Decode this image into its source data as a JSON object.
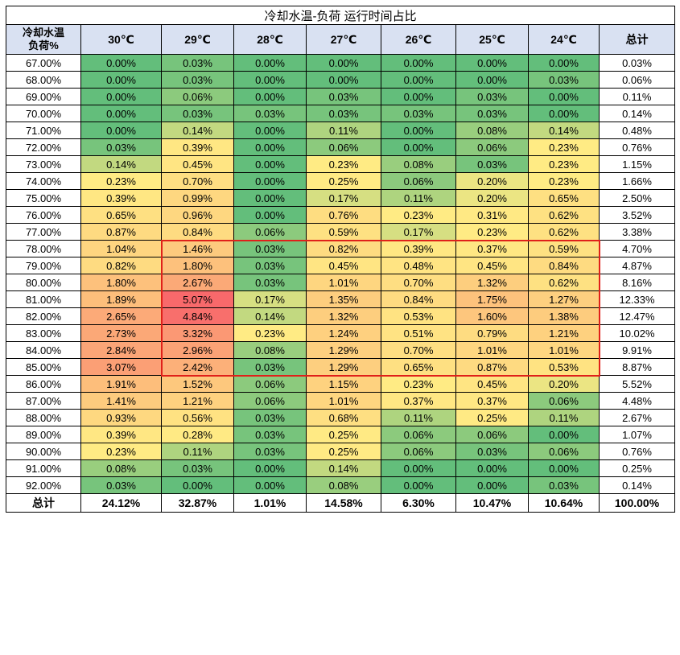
{
  "table": {
    "title": "冷却水温-负荷 运行时间占比",
    "corner_top": "冷却水温",
    "corner_bottom": "负荷%",
    "columns": [
      "30℃",
      "29℃",
      "28℃",
      "27℃",
      "26℃",
      "25℃",
      "24℃"
    ],
    "total_header": "总计",
    "rows": [
      {
        "load": "67.00%",
        "values": [
          "0.00%",
          "0.03%",
          "0.00%",
          "0.00%",
          "0.00%",
          "0.00%",
          "0.00%"
        ],
        "total": "0.03%"
      },
      {
        "load": "68.00%",
        "values": [
          "0.00%",
          "0.03%",
          "0.00%",
          "0.00%",
          "0.00%",
          "0.00%",
          "0.03%"
        ],
        "total": "0.06%"
      },
      {
        "load": "69.00%",
        "values": [
          "0.00%",
          "0.06%",
          "0.00%",
          "0.03%",
          "0.00%",
          "0.03%",
          "0.00%"
        ],
        "total": "0.11%"
      },
      {
        "load": "70.00%",
        "values": [
          "0.00%",
          "0.03%",
          "0.03%",
          "0.03%",
          "0.03%",
          "0.03%",
          "0.00%"
        ],
        "total": "0.14%"
      },
      {
        "load": "71.00%",
        "values": [
          "0.00%",
          "0.14%",
          "0.00%",
          "0.11%",
          "0.00%",
          "0.08%",
          "0.14%"
        ],
        "total": "0.48%"
      },
      {
        "load": "72.00%",
        "values": [
          "0.03%",
          "0.39%",
          "0.00%",
          "0.06%",
          "0.00%",
          "0.06%",
          "0.23%"
        ],
        "total": "0.76%"
      },
      {
        "load": "73.00%",
        "values": [
          "0.14%",
          "0.45%",
          "0.00%",
          "0.23%",
          "0.08%",
          "0.03%",
          "0.23%"
        ],
        "total": "1.15%"
      },
      {
        "load": "74.00%",
        "values": [
          "0.23%",
          "0.70%",
          "0.00%",
          "0.25%",
          "0.06%",
          "0.20%",
          "0.23%"
        ],
        "total": "1.66%"
      },
      {
        "load": "75.00%",
        "values": [
          "0.39%",
          "0.99%",
          "0.00%",
          "0.17%",
          "0.11%",
          "0.20%",
          "0.65%"
        ],
        "total": "2.50%"
      },
      {
        "load": "76.00%",
        "values": [
          "0.65%",
          "0.96%",
          "0.00%",
          "0.76%",
          "0.23%",
          "0.31%",
          "0.62%"
        ],
        "total": "3.52%"
      },
      {
        "load": "77.00%",
        "values": [
          "0.87%",
          "0.84%",
          "0.06%",
          "0.59%",
          "0.17%",
          "0.23%",
          "0.62%"
        ],
        "total": "3.38%"
      },
      {
        "load": "78.00%",
        "values": [
          "1.04%",
          "1.46%",
          "0.03%",
          "0.82%",
          "0.39%",
          "0.37%",
          "0.59%"
        ],
        "total": "4.70%"
      },
      {
        "load": "79.00%",
        "values": [
          "0.82%",
          "1.80%",
          "0.03%",
          "0.45%",
          "0.48%",
          "0.45%",
          "0.84%"
        ],
        "total": "4.87%"
      },
      {
        "load": "80.00%",
        "values": [
          "1.80%",
          "2.67%",
          "0.03%",
          "1.01%",
          "0.70%",
          "1.32%",
          "0.62%"
        ],
        "total": "8.16%"
      },
      {
        "load": "81.00%",
        "values": [
          "1.89%",
          "5.07%",
          "0.17%",
          "1.35%",
          "0.84%",
          "1.75%",
          "1.27%"
        ],
        "total": "12.33%"
      },
      {
        "load": "82.00%",
        "values": [
          "2.65%",
          "4.84%",
          "0.14%",
          "1.32%",
          "0.53%",
          "1.60%",
          "1.38%"
        ],
        "total": "12.47%"
      },
      {
        "load": "83.00%",
        "values": [
          "2.73%",
          "3.32%",
          "0.23%",
          "1.24%",
          "0.51%",
          "0.79%",
          "1.21%"
        ],
        "total": "10.02%"
      },
      {
        "load": "84.00%",
        "values": [
          "2.84%",
          "2.96%",
          "0.08%",
          "1.29%",
          "0.70%",
          "1.01%",
          "1.01%"
        ],
        "total": "9.91%"
      },
      {
        "load": "85.00%",
        "values": [
          "3.07%",
          "2.42%",
          "0.03%",
          "1.29%",
          "0.65%",
          "0.87%",
          "0.53%"
        ],
        "total": "8.87%"
      },
      {
        "load": "86.00%",
        "values": [
          "1.91%",
          "1.52%",
          "0.06%",
          "1.15%",
          "0.23%",
          "0.45%",
          "0.20%"
        ],
        "total": "5.52%"
      },
      {
        "load": "87.00%",
        "values": [
          "1.41%",
          "1.21%",
          "0.06%",
          "1.01%",
          "0.37%",
          "0.37%",
          "0.06%"
        ],
        "total": "4.48%"
      },
      {
        "load": "88.00%",
        "values": [
          "0.93%",
          "0.56%",
          "0.03%",
          "0.68%",
          "0.11%",
          "0.25%",
          "0.11%"
        ],
        "total": "2.67%"
      },
      {
        "load": "89.00%",
        "values": [
          "0.39%",
          "0.28%",
          "0.03%",
          "0.25%",
          "0.06%",
          "0.06%",
          "0.00%"
        ],
        "total": "1.07%"
      },
      {
        "load": "90.00%",
        "values": [
          "0.23%",
          "0.11%",
          "0.03%",
          "0.25%",
          "0.06%",
          "0.03%",
          "0.06%"
        ],
        "total": "0.76%"
      },
      {
        "load": "91.00%",
        "values": [
          "0.08%",
          "0.03%",
          "0.00%",
          "0.14%",
          "0.00%",
          "0.00%",
          "0.00%"
        ],
        "total": "0.25%"
      },
      {
        "load": "92.00%",
        "values": [
          "0.03%",
          "0.00%",
          "0.00%",
          "0.08%",
          "0.00%",
          "0.00%",
          "0.03%"
        ],
        "total": "0.14%"
      }
    ],
    "totals_label": "总计",
    "totals": [
      "24.12%",
      "32.87%",
      "1.01%",
      "14.58%",
      "6.30%",
      "10.47%",
      "10.64%"
    ],
    "grand_total": "100.00%"
  },
  "colors": {
    "scale_low": "#63be7b",
    "scale_mid": "#ffeb84",
    "scale_high": "#f8696b",
    "highlight_border": "#e0201a",
    "header_bg": "#d9e1f2"
  },
  "highlight": {
    "rows": [
      "78.00%",
      "85.00%"
    ],
    "columns": [
      "29℃",
      "24℃"
    ]
  }
}
